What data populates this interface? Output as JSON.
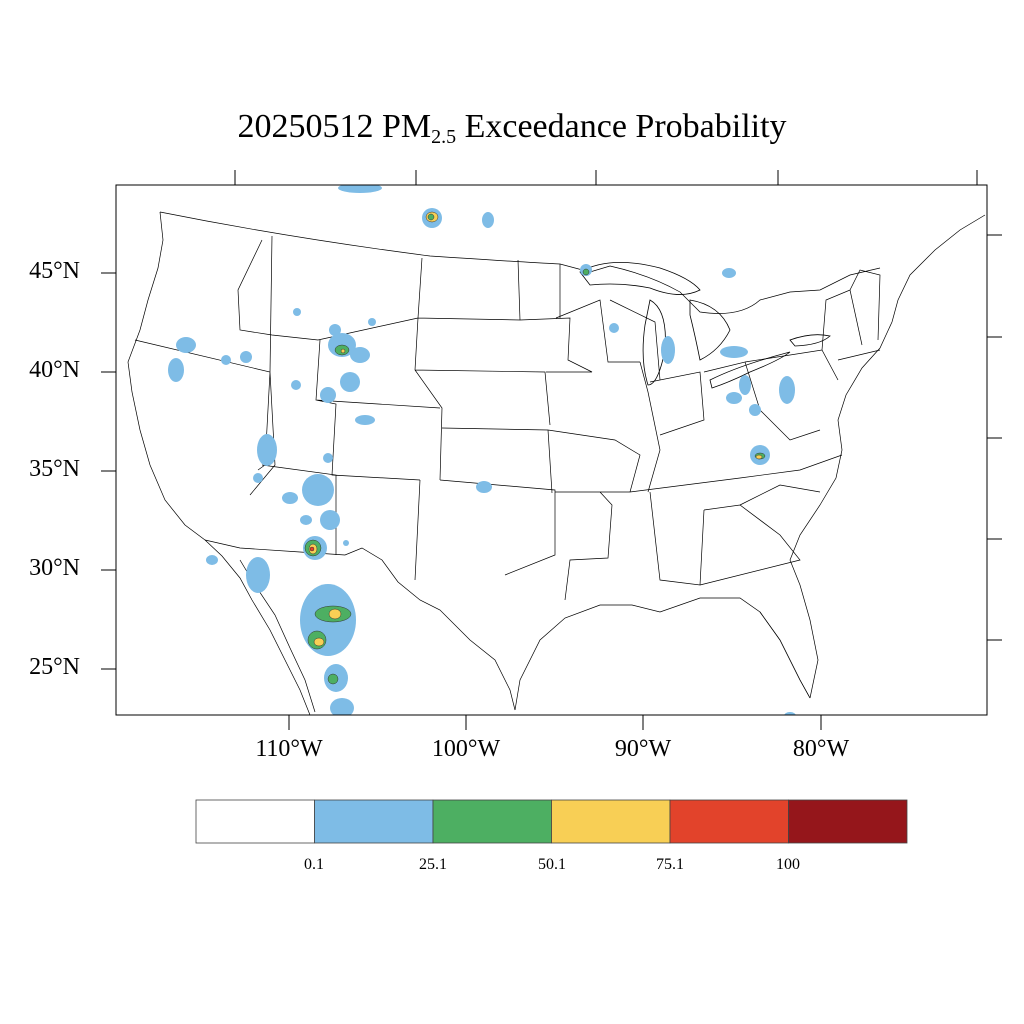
{
  "title": {
    "prefix": "20250512 PM",
    "sub": "2.5",
    "suffix": " Exceedance Probability"
  },
  "axes": {
    "lat_labels": [
      "45°N",
      "40°N",
      "35°N",
      "30°N",
      "25°N"
    ],
    "lon_labels": [
      "110°W",
      "100°W",
      "90°W",
      "80°W"
    ]
  },
  "colorbar": {
    "colors": [
      "#ffffff",
      "#7ebce6",
      "#4daf62",
      "#f8cf55",
      "#e2432b",
      "#95161b"
    ],
    "labels": [
      "0.1",
      "25.1",
      "50.1",
      "75.1",
      "100"
    ]
  },
  "map_features": {
    "projection": "lambert-conformal",
    "region": "CONUS",
    "hotspots": [
      {
        "area": "southern Montana",
        "max_class": "50.1"
      },
      {
        "area": "southern Saskatchewan",
        "max_class": "50.1"
      },
      {
        "area": "northern Arizona",
        "max_class": "75.1"
      },
      {
        "area": "northwest Mexico (upper)",
        "max_class": "50.1"
      },
      {
        "area": "northwest Mexico (lower)",
        "max_class": "50.1"
      },
      {
        "area": "Lake Superior west",
        "max_class": "50.1"
      },
      {
        "area": "West Virginia / Virginia",
        "max_class": "50.1"
      }
    ]
  }
}
